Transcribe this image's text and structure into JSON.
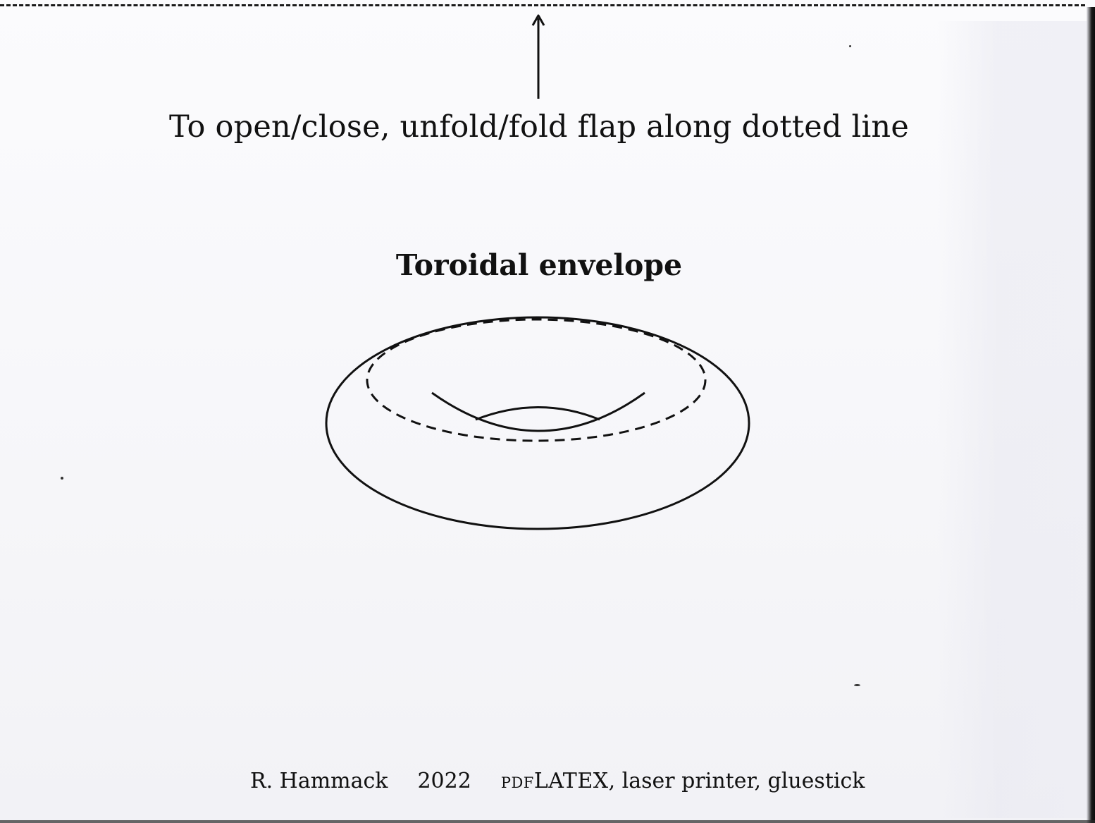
{
  "instruction": "To open/close, unfold/fold flap along dotted line",
  "title": "Toroidal envelope",
  "footer": {
    "author": "R. Hammack",
    "year": "2022",
    "tools_prefix": "pdfLATEX",
    "tools_rest": ", laser printer, gluestick"
  },
  "icons": {
    "arrow": "arrow-up-icon",
    "illustration": "torus-icon"
  },
  "colors": {
    "ink": "#111111",
    "paper": "#f8f8fb"
  }
}
